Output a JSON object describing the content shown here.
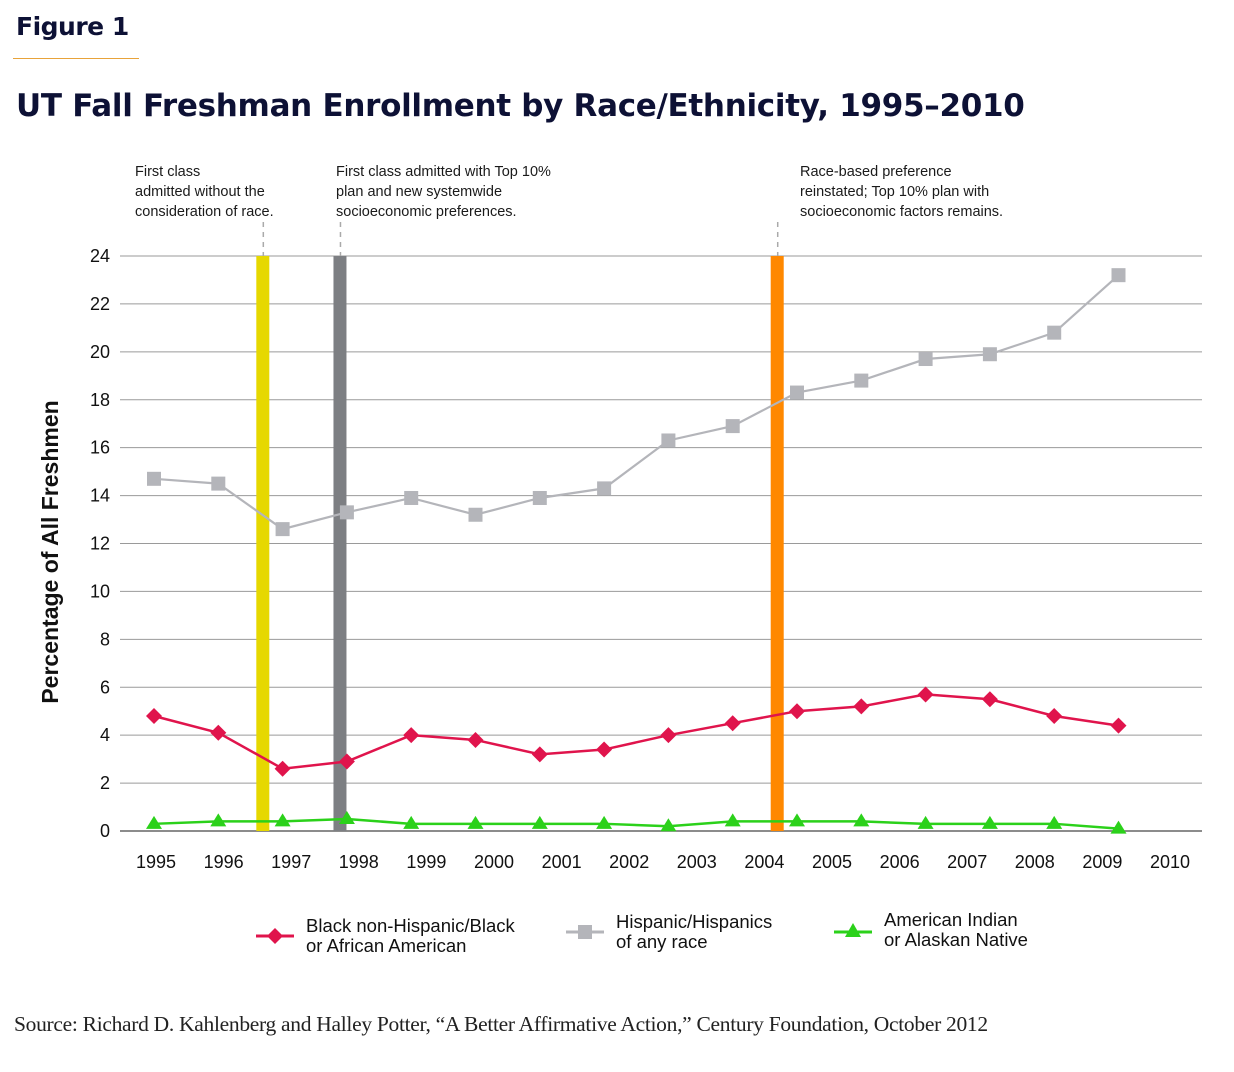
{
  "figure_label": "Figure 1",
  "title": "UT Fall Freshman Enrollment by Race/Ethnicity, 1995–2010",
  "source": "Source: Richard D. Kahlenberg and Halley Potter, “A Better Affirmative Action,” Century Foundation, October 2012",
  "chart_data": {
    "type": "line",
    "title": "UT Fall Freshman Enrollment by Race/Ethnicity, 1995–2010",
    "xlabel": "",
    "ylabel": "Percentage of All Freshmen",
    "ylim": [
      0,
      24
    ],
    "yticks": [
      0,
      2,
      4,
      6,
      8,
      10,
      12,
      14,
      16,
      18,
      20,
      22,
      24
    ],
    "grid": true,
    "legend_position": "bottom",
    "categories": [
      "1995",
      "1996",
      "1997",
      "1998",
      "1999",
      "2000",
      "2001",
      "2002",
      "2003",
      "2004",
      "2005",
      "2006",
      "2007",
      "2008",
      "2009",
      "2010"
    ],
    "series": [
      {
        "name": "Black non-Hispanic/Black or African American",
        "legend_label": "Black non-Hispanic/Black\nor African American",
        "marker": "diamond",
        "color": "#e0144c",
        "values": [
          4.8,
          4.1,
          2.6,
          2.9,
          4.0,
          3.8,
          3.2,
          3.4,
          4.0,
          4.5,
          5.0,
          5.2,
          5.7,
          5.5,
          4.8,
          4.4
        ]
      },
      {
        "name": "Hispanic/Hispanics of any race",
        "legend_label": "Hispanic/Hispanics\nof any race",
        "marker": "square",
        "color": "#b4b5ba",
        "values": [
          14.7,
          14.5,
          12.6,
          13.3,
          13.9,
          13.2,
          13.9,
          14.3,
          16.3,
          16.9,
          18.3,
          18.8,
          19.7,
          19.9,
          20.8,
          23.2
        ]
      },
      {
        "name": "American Indian or Alaskan Native",
        "legend_label": "American Indian\nor Alaskan Native",
        "marker": "triangle",
        "color": "#2bd11a",
        "values": [
          0.3,
          0.4,
          0.4,
          0.5,
          0.3,
          0.3,
          0.3,
          0.3,
          0.2,
          0.4,
          0.4,
          0.4,
          0.3,
          0.3,
          0.3,
          0.1
        ]
      }
    ],
    "annotations": [
      {
        "text": "First class\nadmitted without the\nconsideration of race.",
        "at_year": 1996.7,
        "bar_color": "#e6d800"
      },
      {
        "text": "First class admitted with Top 10%\nplan and new systemwide\nsocioeconomic preferences.",
        "at_year": 1997.9,
        "bar_color": "#7d7f83"
      },
      {
        "text": "Race-based preference\nreinstated; Top 10% plan with\nsocioeconomic factors remains.",
        "at_year": 2004.7,
        "bar_color": "#ff8800"
      }
    ]
  }
}
